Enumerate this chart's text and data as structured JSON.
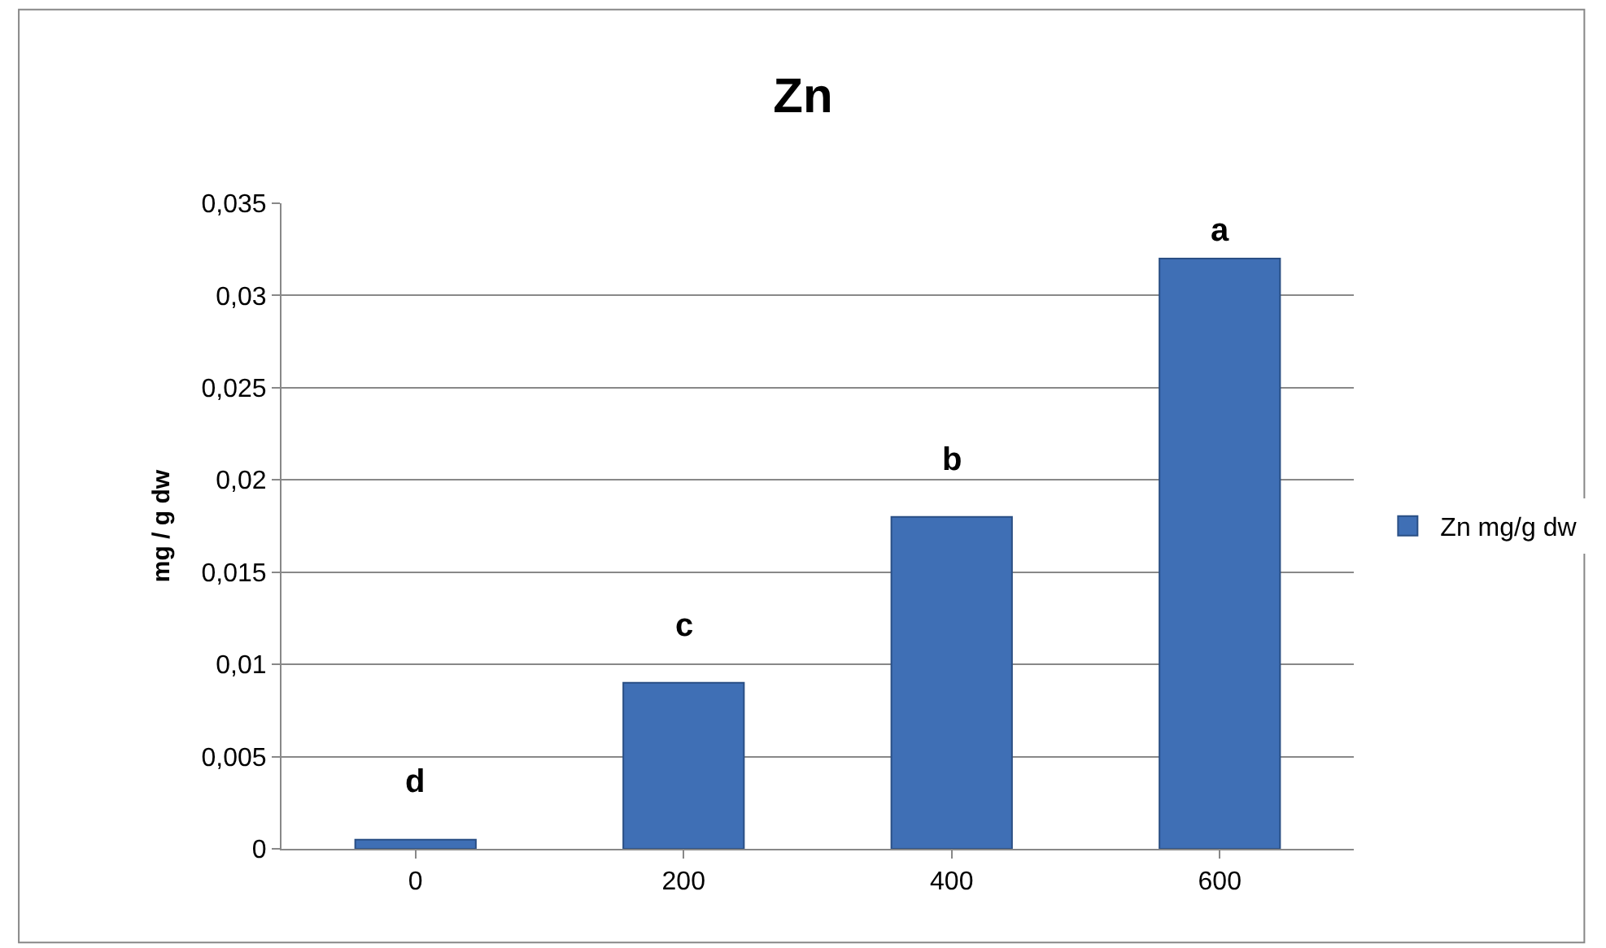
{
  "chart_data": {
    "type": "bar",
    "title": "Zn",
    "ylabel": "mg / g dw",
    "categories": [
      "0",
      "200",
      "400",
      "600"
    ],
    "series": [
      {
        "name": "Zn mg/g dw",
        "color": "#3f6fb5",
        "values": [
          0.0005,
          0.009,
          0.018,
          0.032
        ]
      }
    ],
    "ylim": [
      0,
      0.035
    ],
    "yticks": [
      0,
      {
        "value": 0.005,
        "label": "0,005"
      },
      {
        "value": 0.01,
        "label": "0,01"
      },
      {
        "value": 0.015,
        "label": "0,015"
      },
      {
        "value": 0.02,
        "label": "0,02"
      },
      {
        "value": 0.025,
        "label": "0,025"
      },
      {
        "value": 0.03,
        "label": "0,03"
      },
      {
        "value": 0.035,
        "label": "0,035"
      }
    ],
    "annotations": [
      "d",
      "c",
      "b",
      "a"
    ],
    "grid": "y",
    "legend": "right"
  }
}
